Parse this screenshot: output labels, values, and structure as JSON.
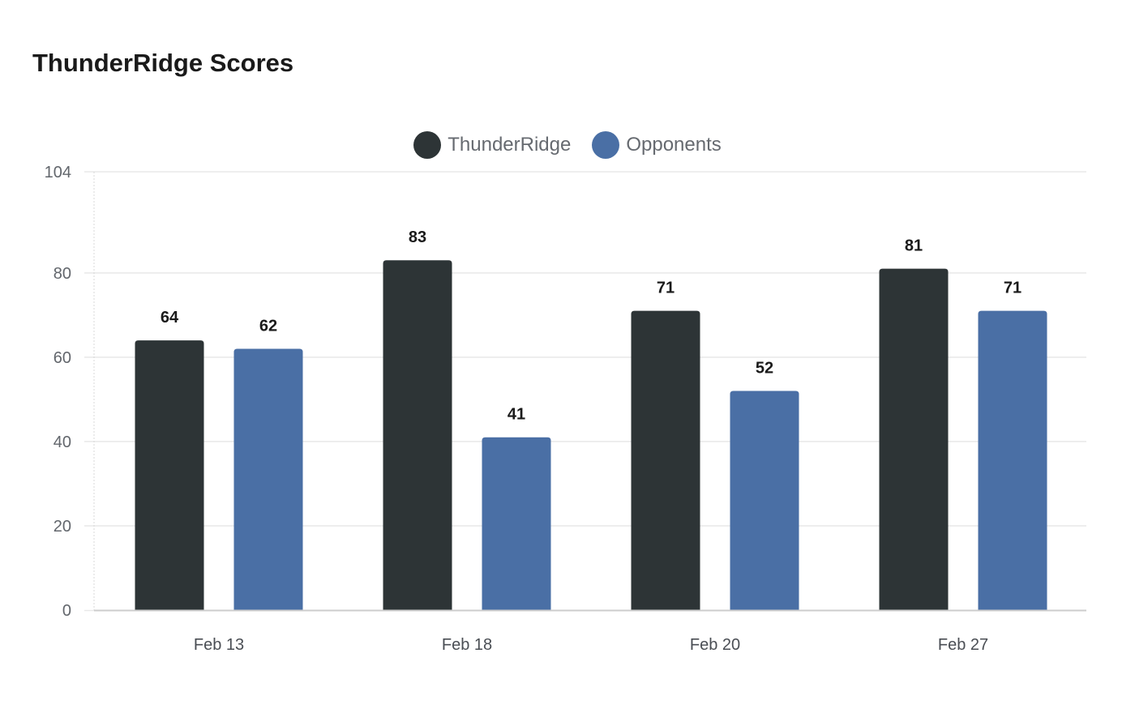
{
  "chart_data": {
    "type": "bar",
    "title": "ThunderRidge Scores",
    "xlabel": "",
    "ylabel": "",
    "categories": [
      "Feb 13",
      "Feb 18",
      "Feb 20",
      "Feb 27"
    ],
    "series": [
      {
        "name": "ThunderRidge",
        "color": "#2d3436",
        "values": [
          64,
          83,
          71,
          81
        ]
      },
      {
        "name": "Opponents",
        "color": "#4a6fa5",
        "values": [
          62,
          41,
          52,
          71
        ]
      }
    ],
    "ylim": [
      0,
      104
    ],
    "yticks": [
      0,
      20,
      40,
      60,
      80,
      104
    ],
    "grid": true,
    "legend_position": "top",
    "data_labels": true
  },
  "header": {
    "title": "ThunderRidge Scores"
  },
  "legend": {
    "items": [
      {
        "label": "ThunderRidge",
        "color": "#2d3436"
      },
      {
        "label": "Opponents",
        "color": "#4a6fa5"
      }
    ]
  }
}
